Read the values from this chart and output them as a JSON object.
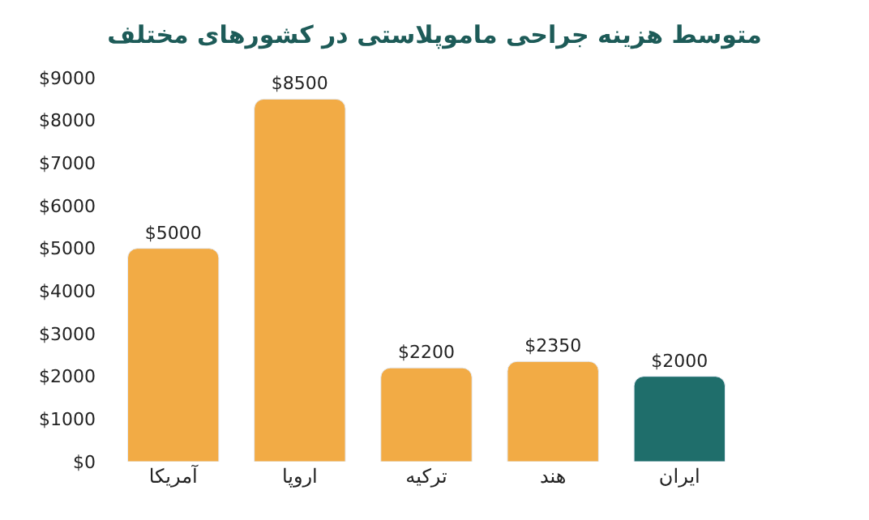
{
  "chart_data": {
    "type": "bar",
    "title": "متوسط هزینه جراحی ماموپلاستی در کشورهای مختلف",
    "categories": [
      "آمریکا",
      "اروپا",
      "ترکیه",
      "هند",
      "ایران"
    ],
    "values": [
      5000,
      8500,
      2200,
      2350,
      2000
    ],
    "colors": [
      "#f2ab45",
      "#f2ab45",
      "#f2ab45",
      "#f2ab45",
      "#1f6e6b"
    ],
    "value_labels": [
      "$5000",
      "$8500",
      "$2200",
      "$2350",
      "$2000"
    ],
    "ylim": [
      0,
      9000
    ],
    "yticks": [
      {
        "value": 0,
        "label": "$0"
      },
      {
        "value": 1000,
        "label": "$1000"
      },
      {
        "value": 2000,
        "label": "$2000"
      },
      {
        "value": 3000,
        "label": "$3000"
      },
      {
        "value": 4000,
        "label": "$4000"
      },
      {
        "value": 5000,
        "label": "$5000"
      },
      {
        "value": 6000,
        "label": "$6000"
      },
      {
        "value": 7000,
        "label": "$7000"
      },
      {
        "value": 8000,
        "label": "$8000"
      },
      {
        "value": 9000,
        "label": "$9000"
      }
    ]
  }
}
